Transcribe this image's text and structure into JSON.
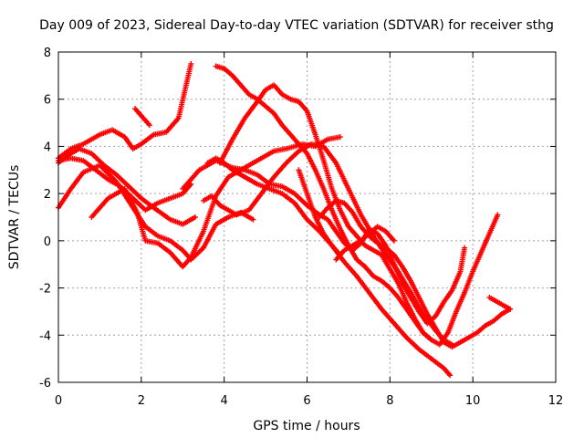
{
  "chart_data": {
    "type": "scatter",
    "title": "Day 009 of 2023, Sidereal Day-to-day VTEC variation (SDTVAR) for receiver sthg",
    "xlabel": "GPS time / hours",
    "ylabel": "SDTVAR / TECUs",
    "xlim": [
      0,
      12
    ],
    "ylim": [
      -6,
      8
    ],
    "xticks": [
      "0",
      "2",
      "4",
      "6",
      "8",
      "10",
      "12"
    ],
    "yticks": [
      "-6",
      "-4",
      "-2",
      "0",
      "2",
      "4",
      "6",
      "8"
    ],
    "grid": true,
    "marker": "plus",
    "color": "#ff0000",
    "series": [
      {
        "x": [
          0.0,
          0.3,
          0.6,
          1.0,
          1.3,
          1.6,
          1.8,
          2.0,
          2.3,
          2.6,
          2.9,
          3.2
        ],
        "y": [
          3.5,
          3.9,
          4.1,
          4.5,
          4.7,
          4.4,
          3.9,
          4.1,
          4.5,
          4.6,
          5.2,
          7.5
        ]
      },
      {
        "x": [
          1.85,
          2.0,
          2.2
        ],
        "y": [
          5.6,
          5.3,
          4.9
        ]
      },
      {
        "x": [
          0.0,
          0.3,
          0.6,
          0.9,
          1.2,
          1.5,
          1.8,
          2.1,
          2.4,
          2.7,
          3.0,
          3.2
        ],
        "y": [
          3.4,
          3.5,
          3.4,
          3.0,
          2.6,
          2.3,
          1.8,
          1.3,
          1.6,
          1.8,
          2.0,
          2.4
        ]
      },
      {
        "x": [
          0.0,
          0.2,
          0.5,
          0.8,
          1.1,
          1.4,
          1.7,
          2.0,
          2.3,
          2.7,
          3.0,
          3.3
        ],
        "y": [
          3.3,
          3.6,
          3.9,
          3.7,
          3.2,
          2.8,
          2.3,
          1.8,
          1.4,
          0.9,
          0.7,
          1.0
        ]
      },
      {
        "x": [
          0.0,
          0.3,
          0.6,
          1.0,
          1.4,
          1.8,
          2.1,
          2.4,
          2.7,
          3.0,
          3.2,
          3.5,
          3.8,
          4.1,
          4.4,
          4.7
        ],
        "y": [
          1.4,
          2.2,
          2.9,
          3.2,
          2.5,
          1.4,
          0.6,
          0.2,
          0.0,
          -0.4,
          -0.8,
          -0.3,
          0.7,
          1.0,
          1.2,
          0.9
        ]
      },
      {
        "x": [
          0.8,
          1.2,
          1.6,
          1.9,
          2.1,
          2.4,
          2.7,
          3.0,
          3.2,
          3.5,
          3.8,
          4.1,
          4.4,
          4.8,
          5.2,
          5.5,
          5.9,
          6.2,
          6.5,
          6.8
        ],
        "y": [
          1.0,
          1.8,
          2.2,
          1.2,
          0.0,
          -0.1,
          -0.5,
          -1.1,
          -0.7,
          0.4,
          1.9,
          2.7,
          3.0,
          3.4,
          3.8,
          3.9,
          4.1,
          4.0,
          4.3,
          4.4
        ]
      },
      {
        "x": [
          3.6,
          3.8,
          4.0,
          4.2,
          4.5,
          4.8,
          5.1,
          5.4,
          5.7,
          6.0,
          6.3,
          6.6,
          6.9,
          7.2,
          7.5,
          7.8,
          8.1,
          8.4,
          8.7,
          9.0,
          9.3,
          9.45
        ],
        "y": [
          3.3,
          3.5,
          3.3,
          3.0,
          2.7,
          2.4,
          2.2,
          2.0,
          1.6,
          0.9,
          0.4,
          -0.2,
          -0.9,
          -1.5,
          -2.2,
          -2.9,
          -3.5,
          -4.1,
          -4.6,
          -5.0,
          -5.4,
          -5.7
        ]
      },
      {
        "x": [
          3.0,
          3.4,
          3.8,
          4.2,
          4.5,
          4.8,
          5.1,
          5.4,
          5.7,
          6.0,
          6.3,
          6.5,
          6.7,
          6.9,
          7.1,
          7.3,
          7.5,
          7.7,
          7.9,
          8.1,
          8.3,
          8.5,
          8.7,
          8.9,
          9.1,
          9.3,
          9.5,
          9.7,
          9.8
        ],
        "y": [
          2.2,
          3.0,
          3.4,
          3.1,
          3.0,
          2.8,
          2.4,
          2.3,
          2.0,
          1.5,
          1.1,
          0.9,
          0.4,
          -0.1,
          -0.4,
          -0.1,
          0.5,
          0.3,
          -0.2,
          -1.0,
          -1.8,
          -2.4,
          -3.0,
          -3.5,
          -3.2,
          -2.6,
          -2.1,
          -1.3,
          -0.3
        ]
      },
      {
        "x": [
          3.5,
          3.7,
          3.9,
          4.1,
          4.3,
          4.6,
          4.9,
          5.2,
          5.5,
          5.8,
          6.1,
          6.4,
          6.7,
          7.0,
          7.3,
          7.6,
          7.9,
          8.2,
          8.5,
          8.8,
          9.1,
          9.3,
          9.5
        ],
        "y": [
          1.7,
          1.9,
          1.5,
          1.3,
          1.1,
          1.3,
          2.0,
          2.7,
          3.3,
          3.8,
          4.1,
          4.0,
          3.3,
          2.2,
          1.1,
          0.2,
          -0.6,
          -1.3,
          -2.2,
          -3.1,
          -3.8,
          -4.2,
          -4.4
        ]
      },
      {
        "x": [
          3.8,
          4.0,
          4.2,
          4.4,
          4.6,
          4.8,
          5.0,
          5.2,
          5.4,
          5.6,
          5.8,
          6.0,
          6.2,
          6.4,
          6.6,
          6.8,
          7.0,
          7.2,
          7.4,
          7.6,
          7.8,
          8.0,
          8.2,
          8.4,
          8.6,
          8.8,
          9.0
        ],
        "y": [
          7.4,
          7.3,
          7.0,
          6.6,
          6.2,
          6.0,
          5.7,
          5.4,
          4.9,
          4.5,
          4.1,
          3.7,
          3.0,
          2.2,
          1.3,
          0.5,
          -0.2,
          -0.8,
          -1.1,
          -1.5,
          -1.7,
          -2.0,
          -2.4,
          -2.9,
          -3.4,
          -3.9,
          -4.2
        ]
      },
      {
        "x": [
          3.9,
          4.2,
          4.5,
          4.8,
          5.0,
          5.2,
          5.4,
          5.6,
          5.8,
          6.0,
          6.2,
          6.4,
          6.6,
          6.8,
          7.0,
          7.2,
          7.4,
          7.6,
          7.8,
          8.0,
          8.2,
          8.4,
          8.6,
          8.8,
          9.0,
          9.2,
          9.4,
          9.6,
          9.8,
          10.0,
          10.2,
          10.4,
          10.6
        ],
        "y": [
          3.3,
          4.3,
          5.2,
          5.9,
          6.4,
          6.6,
          6.2,
          6.0,
          5.9,
          5.5,
          4.5,
          3.4,
          2.2,
          1.3,
          0.6,
          0.2,
          -0.2,
          -0.4,
          -0.6,
          -1.2,
          -1.8,
          -2.6,
          -3.3,
          -3.9,
          -4.2,
          -4.4,
          -3.9,
          -3.0,
          -2.2,
          -1.3,
          -0.5,
          0.3,
          1.1
        ]
      },
      {
        "x": [
          6.3,
          6.5,
          6.7,
          6.9,
          7.1,
          7.3,
          7.5,
          7.7,
          7.9,
          8.1,
          8.3,
          8.5,
          8.7,
          8.9,
          9.1,
          9.3,
          9.5,
          9.7,
          9.9,
          10.1,
          10.3,
          10.5,
          10.7,
          10.9
        ],
        "y": [
          1.0,
          1.4,
          1.7,
          1.6,
          1.2,
          0.6,
          0.2,
          -0.1,
          -0.3,
          -0.6,
          -1.1,
          -1.7,
          -2.4,
          -3.1,
          -3.7,
          -4.3,
          -4.5,
          -4.3,
          -4.1,
          -3.9,
          -3.6,
          -3.4,
          -3.1,
          -2.9
        ]
      },
      {
        "x": [
          6.7,
          6.9,
          7.1,
          7.3,
          7.5,
          7.7,
          7.9,
          8.1
        ],
        "y": [
          -0.8,
          -0.4,
          -0.2,
          0.0,
          0.3,
          0.6,
          0.4,
          0.0
        ]
      },
      {
        "x": [
          5.8,
          6.0,
          6.2,
          6.4,
          6.6,
          6.8
        ],
        "y": [
          3.0,
          2.0,
          1.0,
          0.3,
          -0.2,
          -0.6
        ]
      },
      {
        "x": [
          10.4,
          10.6,
          10.8,
          10.9
        ],
        "y": [
          -2.4,
          -2.6,
          -2.8,
          -2.9
        ]
      }
    ]
  }
}
